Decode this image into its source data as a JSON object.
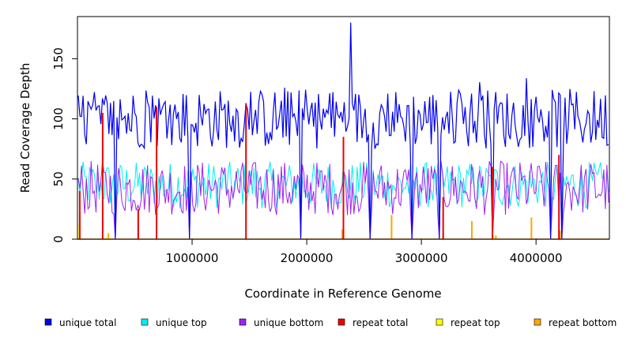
{
  "chart_data": {
    "type": "line",
    "title": "",
    "xlabel": "Coordinate in Reference Genome",
    "ylabel": "Read Coverage Depth",
    "xlim": [
      0,
      4640000
    ],
    "ylim": [
      0,
      185
    ],
    "x_ticks": [
      1000000,
      2000000,
      3000000,
      4000000
    ],
    "x_tick_labels": [
      "1000000",
      "2000000",
      "3000000",
      "4000000"
    ],
    "y_ticks": [
      0,
      50,
      100,
      150
    ],
    "y_tick_labels": [
      "0",
      "50",
      "100",
      "150"
    ],
    "grid": false,
    "legend_position": "bottom",
    "series": [
      {
        "name": "unique total",
        "color": "#0000ee",
        "summary": {
          "typical_range": [
            75,
            125
          ],
          "max": 180,
          "max_x": 2390000
        }
      },
      {
        "name": "unique top",
        "color": "#00eeee",
        "summary": {
          "typical_range": [
            30,
            60
          ]
        }
      },
      {
        "name": "unique bottom",
        "color": "#a020f0",
        "summary": {
          "typical_range": [
            25,
            60
          ]
        }
      },
      {
        "name": "repeat total",
        "color": "#ee0000",
        "points": [
          [
            20000,
            40
          ],
          [
            220000,
            105
          ],
          [
            530000,
            25
          ],
          [
            690000,
            110
          ],
          [
            1470000,
            113
          ],
          [
            2320000,
            85
          ],
          [
            3190000,
            35
          ],
          [
            3620000,
            60
          ],
          [
            4200000,
            70
          ]
        ]
      },
      {
        "name": "repeat top",
        "color": "#ffff00",
        "points": [
          [
            15000,
            12
          ],
          [
            260000,
            3
          ],
          [
            2320000,
            4
          ],
          [
            3630000,
            3
          ]
        ]
      },
      {
        "name": "repeat bottom",
        "color": "#ffa500",
        "points": [
          [
            20000,
            22
          ],
          [
            270000,
            5
          ],
          [
            530000,
            14
          ],
          [
            2310000,
            8
          ],
          [
            2740000,
            20
          ],
          [
            3190000,
            5
          ],
          [
            3440000,
            15
          ],
          [
            3650000,
            3
          ],
          [
            3960000,
            18
          ],
          [
            4210000,
            7
          ]
        ]
      }
    ]
  }
}
